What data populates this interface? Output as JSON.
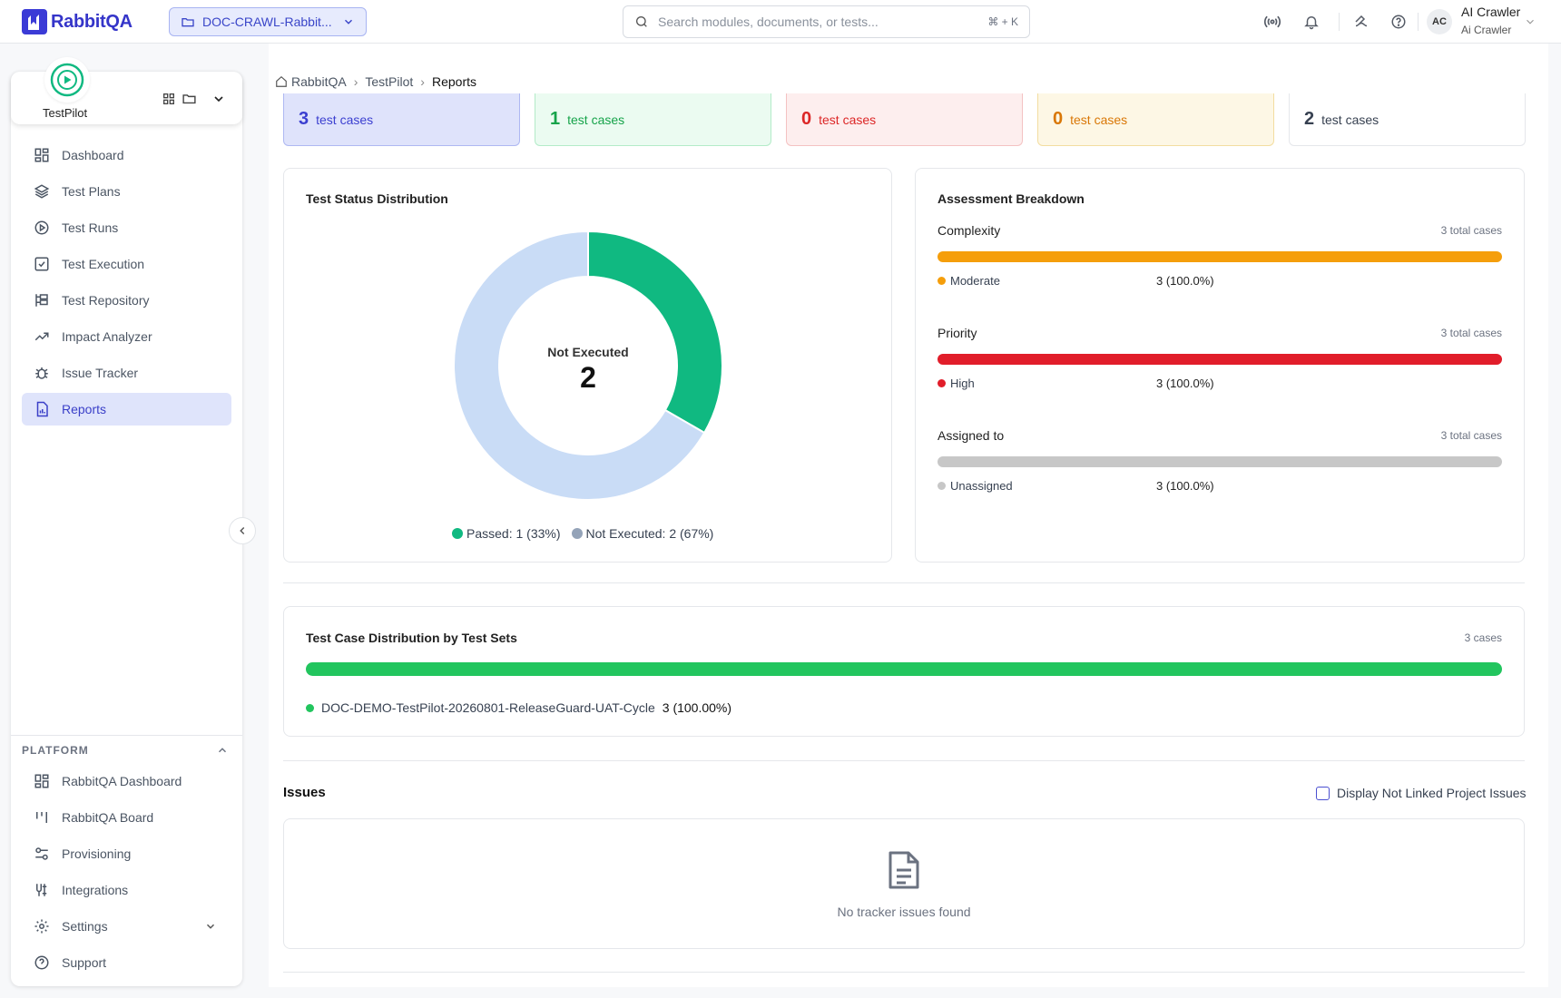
{
  "app": {
    "brand": "RabbitQA",
    "project": "DOC-CRAWL-Rabbit..."
  },
  "search": {
    "placeholder": "Search modules, documents, or tests...",
    "shortcut": "⌘ + K"
  },
  "user": {
    "initials": "AC",
    "name": "AI Crawler",
    "subtitle": "Ai Crawler"
  },
  "module": {
    "name": "TestPilot"
  },
  "nav": [
    {
      "label": "Dashboard",
      "icon": "grid-icon"
    },
    {
      "label": "Test Plans",
      "icon": "layers-icon"
    },
    {
      "label": "Test Runs",
      "icon": "play-circle-icon"
    },
    {
      "label": "Test Execution",
      "icon": "checkbox-icon"
    },
    {
      "label": "Test Repository",
      "icon": "tree-icon"
    },
    {
      "label": "Impact Analyzer",
      "icon": "trend-icon"
    },
    {
      "label": "Issue Tracker",
      "icon": "bug-icon"
    },
    {
      "label": "Reports",
      "icon": "report-icon",
      "active": true
    }
  ],
  "platform": {
    "label": "PLATFORM",
    "items": [
      {
        "label": "RabbitQA Dashboard",
        "icon": "grid-icon"
      },
      {
        "label": "RabbitQA Board",
        "icon": "board-icon"
      },
      {
        "label": "Provisioning",
        "icon": "sliders-icon"
      },
      {
        "label": "Integrations",
        "icon": "plug-icon"
      },
      {
        "label": "Settings",
        "icon": "gear-icon"
      },
      {
        "label": "Support",
        "icon": "help-icon"
      }
    ]
  },
  "breadcrumb": [
    "RabbitQA",
    "TestPilot",
    "Reports"
  ],
  "stats": [
    {
      "value": "3",
      "label": "test cases",
      "bg": "#dfe3fb",
      "border": "#aeb8f2",
      "color": "#3b3fd0"
    },
    {
      "value": "1",
      "label": "test cases",
      "bg": "#ebfbf1",
      "border": "#b3ebc8",
      "color": "#16a34a"
    },
    {
      "value": "0",
      "label": "test cases",
      "bg": "#fdeeee",
      "border": "#f4c2c2",
      "color": "#dc2626"
    },
    {
      "value": "0",
      "label": "test cases",
      "bg": "#fdf7e5",
      "border": "#f3dda0",
      "color": "#d97706"
    },
    {
      "value": "2",
      "label": "test cases",
      "bg": "#ffffff",
      "border": "#e5e7eb",
      "color": "#374151"
    }
  ],
  "status_chart": {
    "title": "Test Status Distribution",
    "center_label": "Not Executed",
    "center_value": "2",
    "legend": [
      {
        "text": "Passed: 1 (33%)",
        "color": "#10b981"
      },
      {
        "text": "Not Executed: 2 (67%)",
        "color": "#94a3b8"
      }
    ]
  },
  "chart_data": {
    "type": "pie",
    "title": "Test Status Distribution",
    "categories": [
      "Passed",
      "Not Executed"
    ],
    "values": [
      1,
      2
    ],
    "colors": [
      "#10b981",
      "#c9dcf6"
    ],
    "legend": "bottom"
  },
  "assessment": {
    "title": "Assessment Breakdown",
    "groups": [
      {
        "label": "Complexity",
        "total": "3 total cases",
        "bar_color": "#f59e0b",
        "fill": 1.0,
        "item": "Moderate",
        "item_color": "#f59e0b",
        "value": "3 (100.0%)"
      },
      {
        "label": "Priority",
        "total": "3 total cases",
        "bar_color": "#e11d2a",
        "fill": 1.0,
        "item": "High",
        "item_color": "#e11d2a",
        "value": "3 (100.0%)"
      },
      {
        "label": "Assigned to",
        "total": "3 total cases",
        "bar_color": "#c7c7c7",
        "fill": 1.0,
        "item": "Unassigned",
        "item_color": "#c7c7c7",
        "value": "3 (100.0%)"
      }
    ]
  },
  "test_sets": {
    "title": "Test Case Distribution by Test Sets",
    "total": "3 cases",
    "bar_color": "#22c55e",
    "item": "DOC-DEMO-TestPilot-20260801-ReleaseGuard-UAT-Cycle",
    "value": "3 (100.00%)"
  },
  "issues": {
    "title": "Issues",
    "checkbox_label": "Display Not Linked Project Issues",
    "empty": "No tracker issues found"
  }
}
